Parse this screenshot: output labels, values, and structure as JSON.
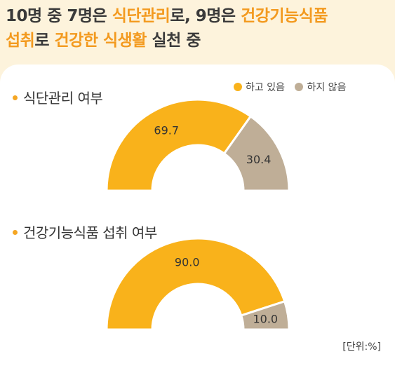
{
  "headline": {
    "line1": [
      {
        "text": "10명 중 7명은 ",
        "hl": false
      },
      {
        "text": "식단관리",
        "hl": true
      },
      {
        "text": "로, 9명은 ",
        "hl": false
      },
      {
        "text": "건강기능식품",
        "hl": true
      }
    ],
    "line2": [
      {
        "text": "섭취",
        "hl": true
      },
      {
        "text": "로 ",
        "hl": false
      },
      {
        "text": "건강한 식생활",
        "hl": true
      },
      {
        "text": " 실천 중",
        "hl": false
      }
    ]
  },
  "unit_label": "[단위:%]",
  "chart_data": [
    {
      "type": "pie",
      "subtype": "semi-donut",
      "title": "식단관리 여부",
      "labels": [
        "하고 있음",
        "하지 않음"
      ],
      "values": [
        69.7,
        30.4
      ],
      "value_labels": [
        "69.7",
        "30.4"
      ],
      "colors": [
        "#f9b21b",
        "#bfae97"
      ],
      "legend": "top-right"
    },
    {
      "type": "pie",
      "subtype": "semi-donut",
      "title": "건강기능식품 섭취 여부",
      "labels": [
        "하고 있음",
        "하지 않음"
      ],
      "values": [
        90.0,
        10.0
      ],
      "value_labels": [
        "90.0",
        "10.0"
      ],
      "colors": [
        "#f9b21b",
        "#bfae97"
      ]
    }
  ]
}
